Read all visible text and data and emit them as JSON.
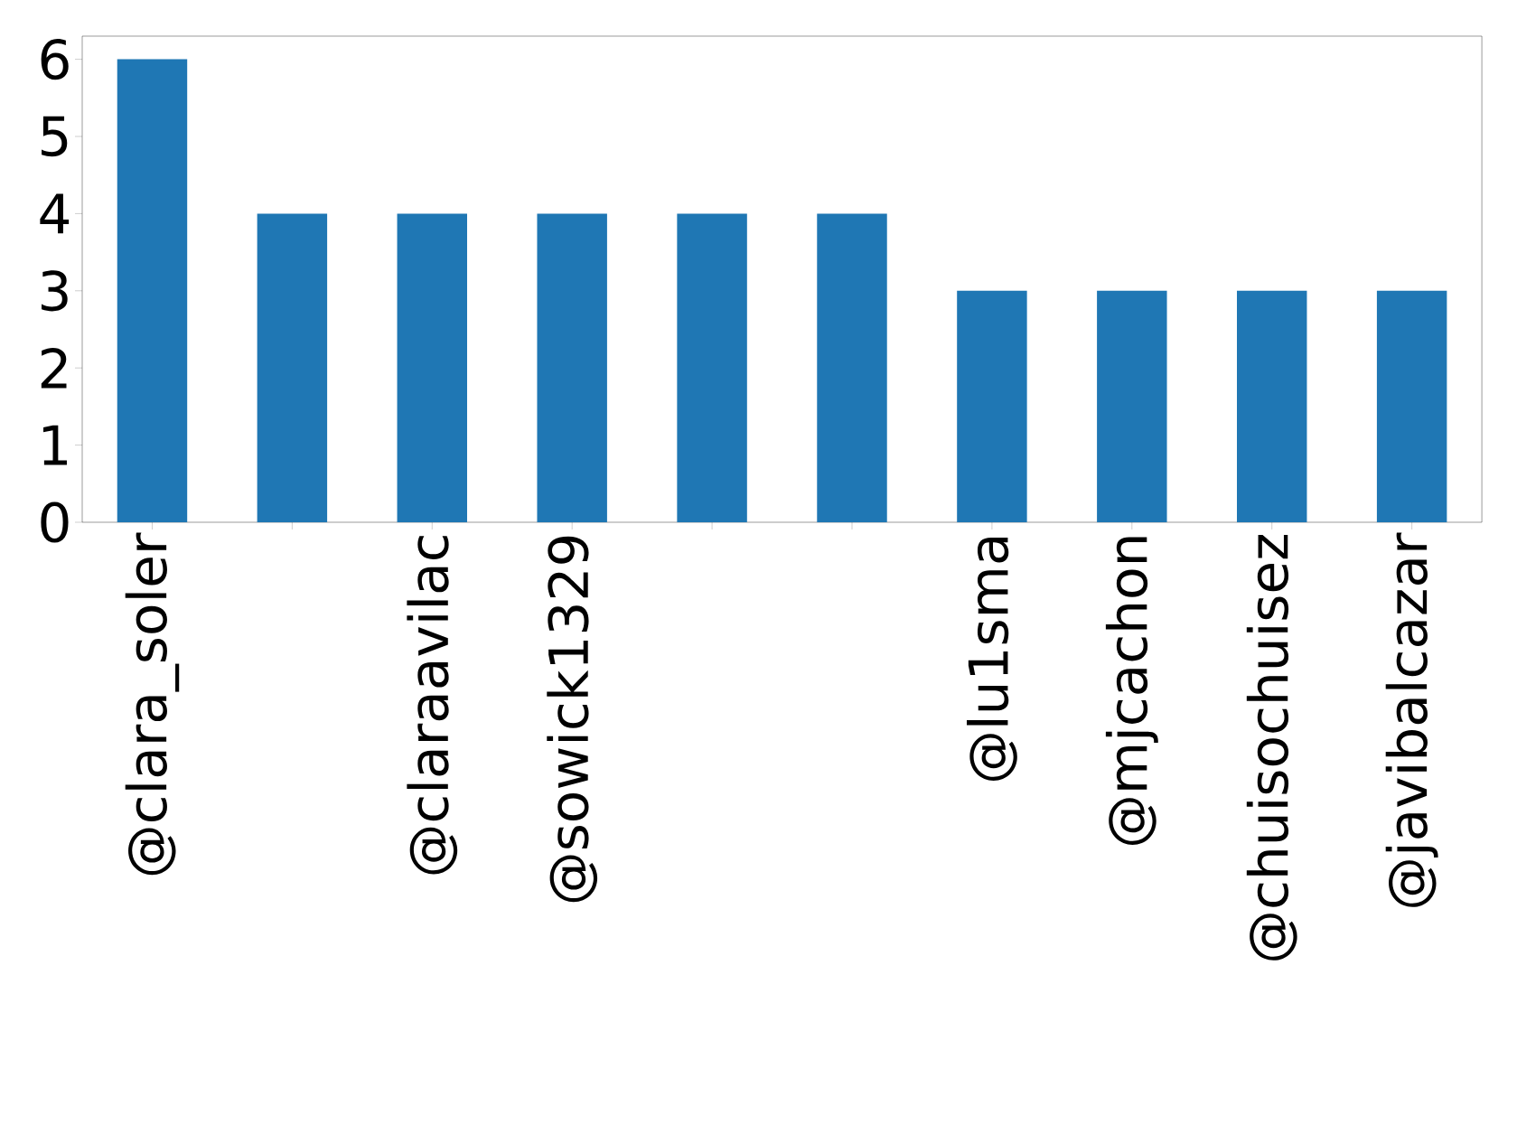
{
  "chart_data": {
    "type": "bar",
    "categories": [
      "@clara_soler",
      null,
      "@claraavilac",
      "@sowick1329",
      null,
      null,
      "@lu1sma",
      "@mjcachon",
      "@chuisochuisez",
      "@javibalcazar"
    ],
    "values": [
      6,
      4,
      4,
      4,
      4,
      4,
      3,
      3,
      3,
      3
    ],
    "color": "#1f77b4",
    "ylim": [
      0,
      6.3
    ],
    "yticks": [
      0,
      1,
      2,
      3,
      4,
      5,
      6
    ]
  }
}
